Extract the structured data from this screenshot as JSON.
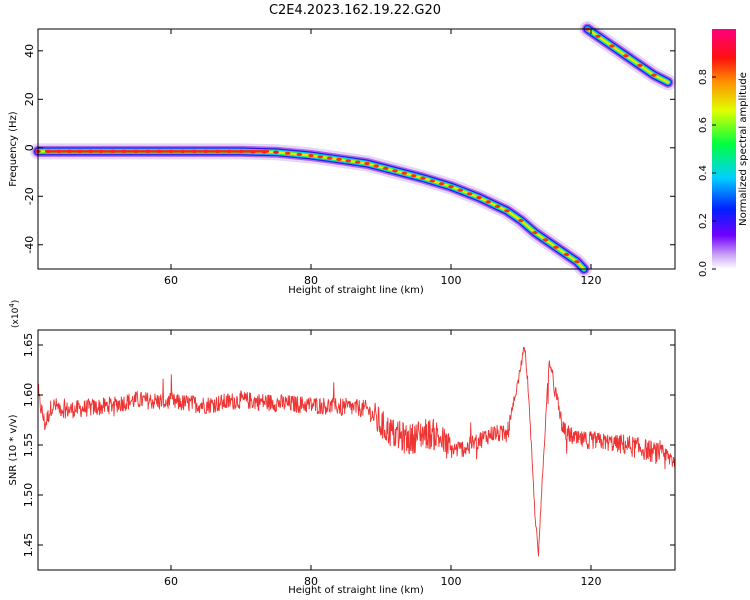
{
  "title": "C2E4.2023.162.19.22.G20",
  "chart_data": [
    {
      "type": "heatmap",
      "xlabel": "Height of straight line (km)",
      "ylabel": "Frequency (Hz)",
      "xlim": [
        41,
        132
      ],
      "ylim": [
        -50,
        49
      ],
      "xticks": [
        60,
        80,
        100,
        120
      ],
      "yticks": [
        -40,
        -20,
        0,
        20,
        40
      ],
      "colorbar": {
        "label": "Normalized spectral amplitude",
        "ticks": [
          "0.0",
          "0.2",
          "0.4",
          "0.6",
          "0.8"
        ],
        "range": [
          0,
          1
        ]
      },
      "ridges": [
        {
          "name": "",
          "x": [
            41,
            50,
            60,
            70,
            75,
            80,
            84,
            88,
            92,
            96,
            100,
            104,
            108,
            110,
            112,
            115,
            118,
            119
          ],
          "y": [
            -1.5,
            -1.5,
            -1.5,
            -1.5,
            -1.8,
            -3.2,
            -4.8,
            -6.5,
            -9.5,
            -12.5,
            -16,
            -20.5,
            -26,
            -30,
            -35,
            -41,
            -47,
            -50
          ]
        },
        {
          "name": "",
          "x": [
            119.5,
            121,
            123,
            125,
            127,
            129,
            131
          ],
          "y": [
            49,
            46,
            42,
            38,
            34,
            30,
            27
          ]
        }
      ]
    },
    {
      "type": "line",
      "xlabel": "Height of straight line (km)",
      "ylabel": "SNR (10 * v/v)",
      "yscale_label": "(x10",
      "yscale_exp": "4",
      "yscale_close": ")",
      "xlim": [
        41,
        132
      ],
      "ylim": [
        1.425,
        1.665
      ],
      "xticks": [
        60,
        80,
        100,
        120
      ],
      "yticks": [
        "1.45",
        "1.50",
        "1.55",
        "1.60",
        "1.65"
      ],
      "series": [
        {
          "name": "",
          "color": "#ee3333",
          "x": [
            41,
            42,
            43,
            45,
            50,
            55,
            60,
            65,
            70,
            75,
            80,
            85,
            88,
            90,
            92,
            94,
            96,
            98,
            100,
            102,
            104,
            106,
            108,
            109,
            110,
            110.5,
            111,
            112,
            112.5,
            113,
            114,
            116,
            118,
            120,
            125,
            128,
            130,
            132
          ],
          "y": [
            1.6,
            1.57,
            1.59,
            1.585,
            1.588,
            1.595,
            1.593,
            1.59,
            1.595,
            1.592,
            1.59,
            1.588,
            1.586,
            1.57,
            1.56,
            1.555,
            1.562,
            1.56,
            1.545,
            1.547,
            1.555,
            1.562,
            1.56,
            1.59,
            1.63,
            1.65,
            1.61,
            1.48,
            1.44,
            1.51,
            1.635,
            1.565,
            1.555,
            1.555,
            1.55,
            1.545,
            1.54,
            1.535
          ]
        }
      ]
    }
  ]
}
